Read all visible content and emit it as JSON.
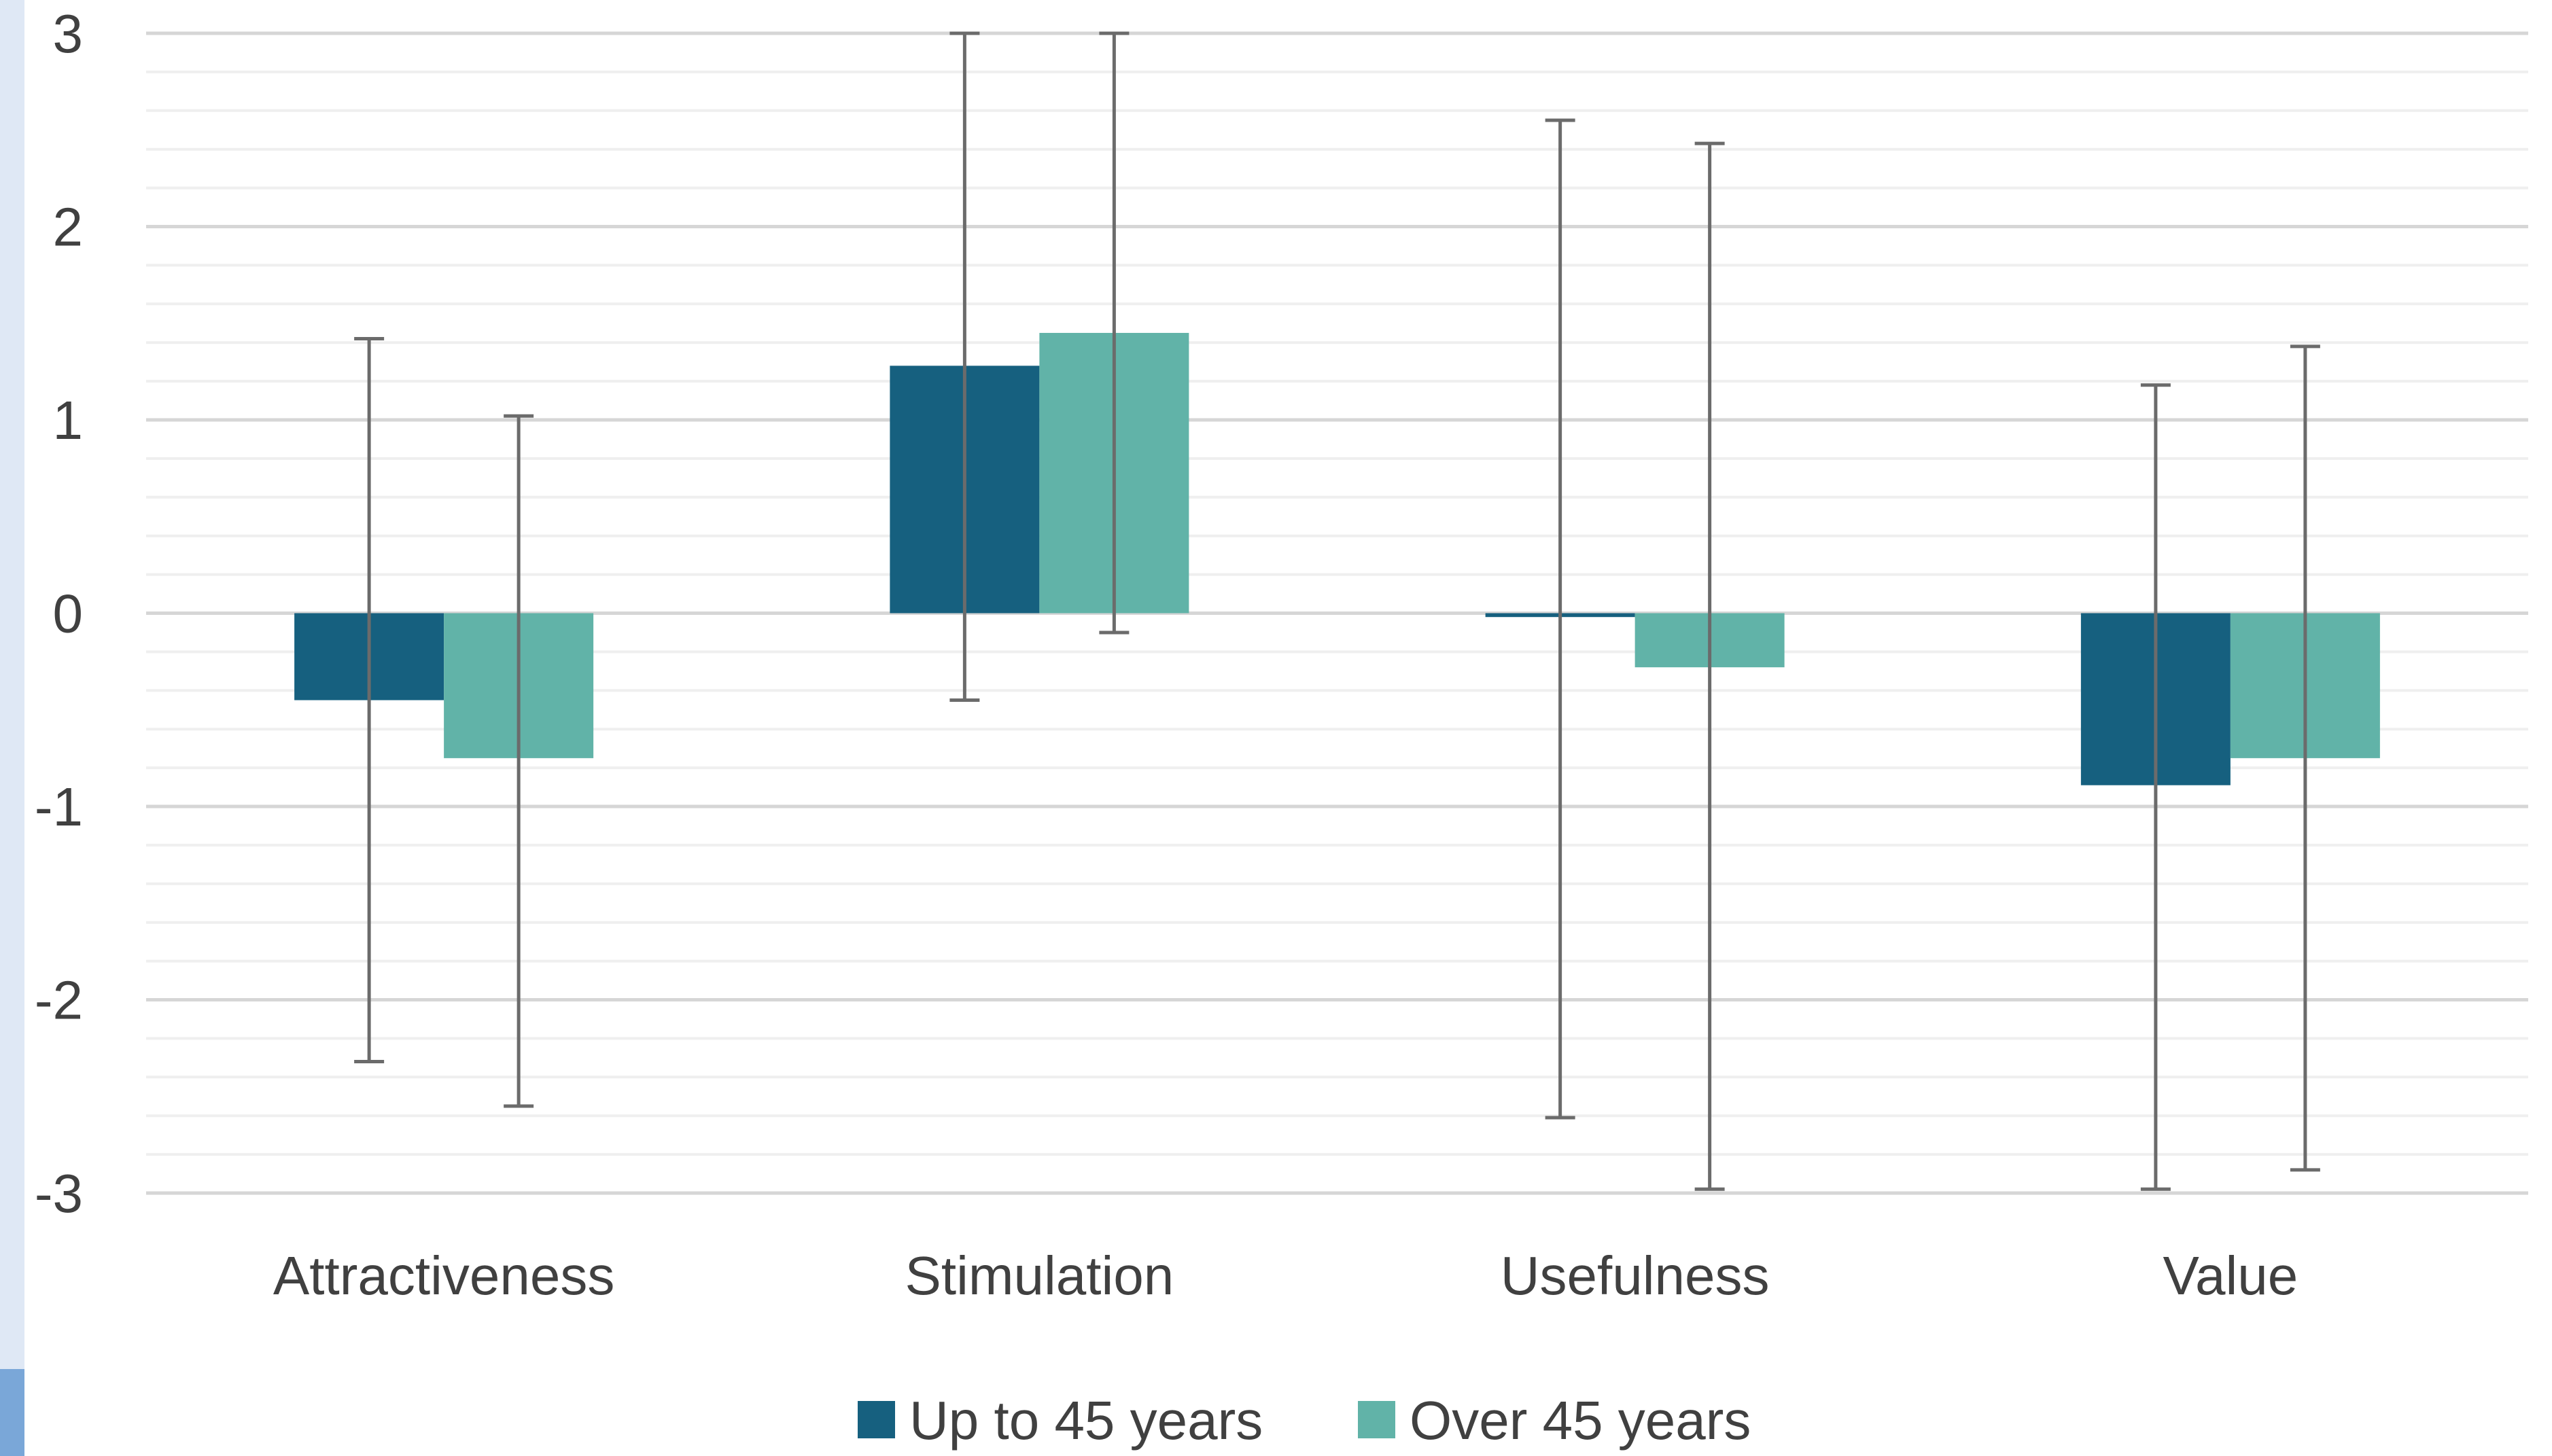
{
  "chart_data": {
    "type": "bar",
    "title": "",
    "xlabel": "",
    "ylabel": "",
    "ylim": [
      -3,
      3
    ],
    "yticks": [
      3,
      2,
      1,
      0,
      -1,
      -2,
      -3
    ],
    "ytick_labels": [
      "3",
      "2",
      "1",
      "0",
      "-1",
      "-2",
      "-3"
    ],
    "categories": [
      "Attractiveness",
      "Stimulation",
      "Usefulness",
      "Value"
    ],
    "series": [
      {
        "name": "Up to 45 years",
        "color": "#16607f",
        "values": [
          -0.45,
          1.28,
          -0.02,
          -0.89
        ],
        "error_low": [
          -2.32,
          -0.45,
          -2.61,
          -2.98
        ],
        "error_high": [
          1.42,
          3.0,
          2.55,
          1.18
        ]
      },
      {
        "name": "Over 45 years",
        "color": "#61b3a8",
        "values": [
          -0.75,
          1.45,
          -0.28,
          -0.75
        ],
        "error_low": [
          -2.55,
          -0.1,
          -2.98,
          -2.88
        ],
        "error_high": [
          1.02,
          3.0,
          2.43,
          1.38
        ]
      }
    ],
    "grid": true,
    "minor_grid": true,
    "legend": "bottom"
  }
}
